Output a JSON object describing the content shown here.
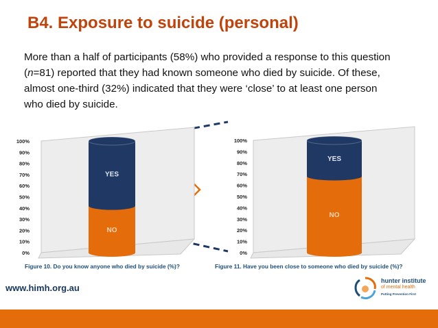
{
  "slide": {
    "title": "B4. Exposure to suicide (personal)",
    "intro_line1": "More than a half of participants (58%) who provided a response to this question",
    "intro_line2_italic": "n",
    "intro_line2_rest": "=81) reported that they had known someone who died by suicide. Of these,",
    "intro_line3": "almost one-third (32%) indicated that they were ‘close’ to at least one person",
    "intro_line4": "who died by suicide.",
    "website": "www.himh.org.au",
    "logo_name": "hunter institute",
    "logo_sub": "of mental health",
    "logo_tagline": "Putting Prevention First"
  },
  "colors": {
    "title": "#c0430c",
    "yes": "#1f3864",
    "no": "#e46c0a",
    "arrow": "#e46c0a",
    "connector": "#1f3864"
  },
  "chart_data": [
    {
      "type": "bar",
      "stacked": true,
      "caption": "Figure 10. Do you know anyone who died by suicide (%)?",
      "series": [
        {
          "label": "NO",
          "values": [
            42
          ]
        },
        {
          "label": "YES",
          "values": [
            58
          ]
        }
      ],
      "yticks": [
        "0%",
        "10%",
        "20%",
        "30%",
        "40%",
        "50%",
        "60%",
        "70%",
        "80%",
        "90%",
        "100%"
      ],
      "ylim": [
        0,
        100
      ]
    },
    {
      "type": "bar",
      "stacked": true,
      "caption": "Figure 11. Have you been close to someone who died by suicide (%)?",
      "series": [
        {
          "label": "NO",
          "values": [
            68
          ]
        },
        {
          "label": "YES",
          "values": [
            32
          ]
        }
      ],
      "yticks": [
        "0%",
        "10%",
        "20%",
        "30%",
        "40%",
        "50%",
        "60%",
        "70%",
        "80%",
        "90%",
        "100%"
      ],
      "ylim": [
        0,
        100
      ]
    }
  ]
}
